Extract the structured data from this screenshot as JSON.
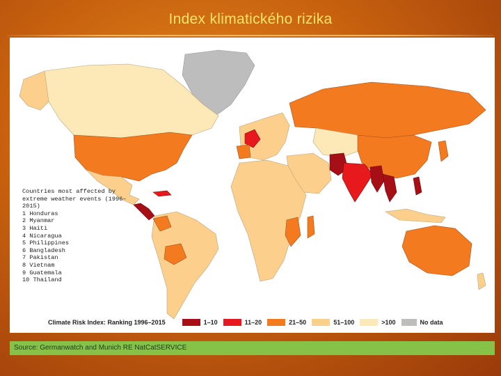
{
  "slide": {
    "title": "Index klimatického rizika"
  },
  "map": {
    "countries_heading": "Countries most affected by extreme weather events (1996–2015)",
    "top_countries": [
      "1 Honduras",
      "2 Myanmar",
      "3 Haiti",
      "4 Nicaragua",
      "5 Philippines",
      "6 Bangladesh",
      "7 Pakistan",
      "8 Vietnam",
      "9 Guatemala",
      "10 Thailand"
    ],
    "legend": {
      "title": "Climate Risk Index: Ranking 1996–2015",
      "items": [
        {
          "label": "1–10",
          "color": "#a50f15"
        },
        {
          "label": "11–20",
          "color": "#e8191c"
        },
        {
          "label": "21–50",
          "color": "#f47a1f"
        },
        {
          "label": "51–100",
          "color": "#fcd08c"
        },
        {
          "label": ">100",
          "color": "#fde8b8"
        },
        {
          "label": "No data",
          "color": "#bdbdbd"
        }
      ]
    }
  },
  "source": {
    "text": "Source: Germanwatch and Munich RE NatCatSERVICE"
  }
}
